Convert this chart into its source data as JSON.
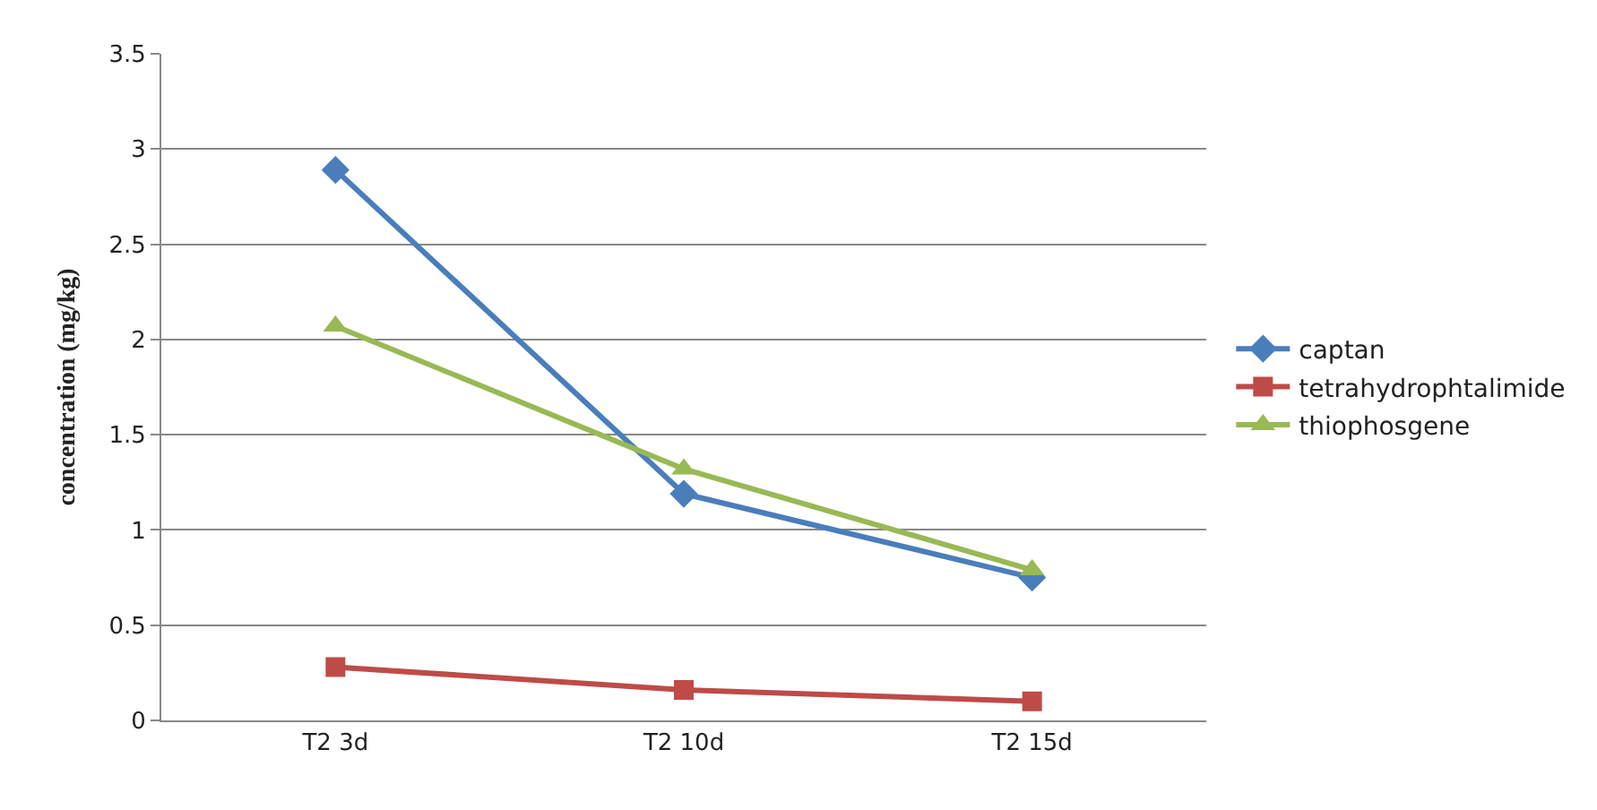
{
  "chart_data": {
    "type": "line",
    "ylabel": "concentration (mg/kg)",
    "categories": [
      "T2 3d",
      "T2 10d",
      "T2 15d"
    ],
    "series": [
      {
        "name": "captan",
        "color": "#4a7ebb",
        "marker": "diamond",
        "values": [
          2.89,
          1.19,
          0.75
        ]
      },
      {
        "name": "tetrahydrophtalimide",
        "color": "#be4b48",
        "marker": "square",
        "values": [
          0.28,
          0.16,
          0.1
        ]
      },
      {
        "name": "thiophosgene",
        "color": "#98b954",
        "marker": "triangle",
        "values": [
          2.07,
          1.32,
          0.79
        ]
      }
    ],
    "ylim": [
      0,
      3.5
    ],
    "yticks": [
      0,
      0.5,
      1,
      1.5,
      2,
      2.5,
      3,
      3.5
    ],
    "grid": "y",
    "legend": "right",
    "line_style": "solid"
  }
}
